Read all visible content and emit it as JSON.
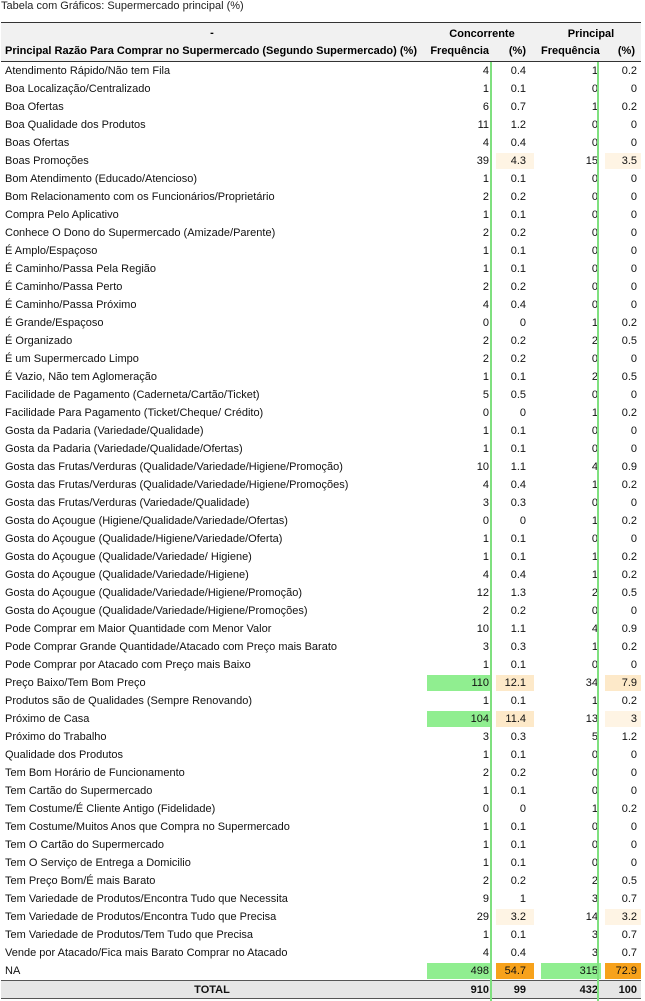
{
  "title": "Tabela com Gráficos: Supermercado principal (%)",
  "header": {
    "dash": "-",
    "row_label": "Principal Razão Para Comprar no Supermercado (Segundo Supermercado) (%)",
    "group1": "Concorrente",
    "group2": "Principal",
    "freq_label": "Frequência",
    "pct_label": "(%)"
  },
  "colors": {
    "bar_green": "#7fe07f",
    "fill_green": "#90ee90",
    "fill_orange": "#f7a21b",
    "fill_peach": "#fde9c9",
    "fill_light_peach": "#fef4e4"
  },
  "rows": [
    {
      "label": "Atendimento Rápido/Não tem Fila",
      "f1": "4",
      "p1": "0.4",
      "f2": "1",
      "p2": "0.2"
    },
    {
      "label": "Boa Localização/Centralizado",
      "f1": "1",
      "p1": "0.1",
      "f2": "0",
      "p2": "0"
    },
    {
      "label": "Boa Ofertas",
      "f1": "6",
      "p1": "0.7",
      "f2": "1",
      "p2": "0.2"
    },
    {
      "label": "Boa Qualidade dos Produtos",
      "f1": "11",
      "p1": "1.2",
      "f2": "0",
      "p2": "0"
    },
    {
      "label": "Boas Ofertas",
      "f1": "4",
      "p1": "0.4",
      "f2": "0",
      "p2": "0"
    },
    {
      "label": "Boas Promoções",
      "f1": "39",
      "p1": "4.3",
      "f2": "15",
      "p2": "3.5"
    },
    {
      "label": "Bom Atendimento (Educado/Atencioso)",
      "f1": "1",
      "p1": "0.1",
      "f2": "0",
      "p2": "0"
    },
    {
      "label": "Bom Relacionamento com os Funcionários/Proprietário",
      "f1": "2",
      "p1": "0.2",
      "f2": "0",
      "p2": "0"
    },
    {
      "label": "Compra Pelo Aplicativo",
      "f1": "1",
      "p1": "0.1",
      "f2": "0",
      "p2": "0"
    },
    {
      "label": "Conhece O Dono do Supermercado (Amizade/Parente)",
      "f1": "2",
      "p1": "0.2",
      "f2": "0",
      "p2": "0"
    },
    {
      "label": "É Amplo/Espaçoso",
      "f1": "1",
      "p1": "0.1",
      "f2": "0",
      "p2": "0"
    },
    {
      "label": "É Caminho/Passa Pela Região",
      "f1": "1",
      "p1": "0.1",
      "f2": "0",
      "p2": "0"
    },
    {
      "label": "É Caminho/Passa Perto",
      "f1": "2",
      "p1": "0.2",
      "f2": "0",
      "p2": "0"
    },
    {
      "label": "É Caminho/Passa Próximo",
      "f1": "4",
      "p1": "0.4",
      "f2": "0",
      "p2": "0"
    },
    {
      "label": "É Grande/Espaçoso",
      "f1": "0",
      "p1": "0",
      "f2": "1",
      "p2": "0.2"
    },
    {
      "label": "É Organizado",
      "f1": "2",
      "p1": "0.2",
      "f2": "2",
      "p2": "0.5"
    },
    {
      "label": "É um Supermercado Limpo",
      "f1": "2",
      "p1": "0.2",
      "f2": "0",
      "p2": "0"
    },
    {
      "label": "É Vazio, Não tem Aglomeração",
      "f1": "1",
      "p1": "0.1",
      "f2": "2",
      "p2": "0.5"
    },
    {
      "label": "Facilidade de Pagamento (Caderneta/Cartão/Ticket)",
      "f1": "5",
      "p1": "0.5",
      "f2": "0",
      "p2": "0"
    },
    {
      "label": "Facilidade Para Pagamento (Ticket/Cheque/ Crédito)",
      "f1": "0",
      "p1": "0",
      "f2": "1",
      "p2": "0.2"
    },
    {
      "label": "Gosta da Padaria (Variedade/Qualidade)",
      "f1": "1",
      "p1": "0.1",
      "f2": "0",
      "p2": "0"
    },
    {
      "label": "Gosta da Padaria (Variedade/Qualidade/Ofertas)",
      "f1": "1",
      "p1": "0.1",
      "f2": "0",
      "p2": "0"
    },
    {
      "label": "Gosta das Frutas/Verduras (Qualidade/Variedade/Higiene/Promoção)",
      "f1": "10",
      "p1": "1.1",
      "f2": "4",
      "p2": "0.9"
    },
    {
      "label": "Gosta das Frutas/Verduras (Qualidade/Variedade/Higiene/Promoções)",
      "f1": "4",
      "p1": "0.4",
      "f2": "1",
      "p2": "0.2"
    },
    {
      "label": "Gosta das Frutas/Verduras (Variedade/Qualidade)",
      "f1": "3",
      "p1": "0.3",
      "f2": "0",
      "p2": "0"
    },
    {
      "label": "Gosta do Açougue (Higiene/Qualidade/Variedade/Ofertas)",
      "f1": "0",
      "p1": "0",
      "f2": "1",
      "p2": "0.2"
    },
    {
      "label": "Gosta do Açougue (Qualidade/Higiene/Variedade/Oferta)",
      "f1": "1",
      "p1": "0.1",
      "f2": "0",
      "p2": "0"
    },
    {
      "label": "Gosta do Açougue (Qualidade/Variedade/ Higiene)",
      "f1": "1",
      "p1": "0.1",
      "f2": "1",
      "p2": "0.2"
    },
    {
      "label": "Gosta do Açougue (Qualidade/Variedade/Higiene)",
      "f1": "4",
      "p1": "0.4",
      "f2": "1",
      "p2": "0.2"
    },
    {
      "label": "Gosta do Açougue (Qualidade/Variedade/Higiene/Promoção)",
      "f1": "12",
      "p1": "1.3",
      "f2": "2",
      "p2": "0.5"
    },
    {
      "label": "Gosta do Açougue (Qualidade/Variedade/Higiene/Promoções)",
      "f1": "2",
      "p1": "0.2",
      "f2": "0",
      "p2": "0"
    },
    {
      "label": "Pode Comprar em Maior Quantidade com Menor Valor",
      "f1": "10",
      "p1": "1.1",
      "f2": "4",
      "p2": "0.9"
    },
    {
      "label": "Pode Comprar Grande Quantidade/Atacado com Preço mais Barato",
      "f1": "3",
      "p1": "0.3",
      "f2": "1",
      "p2": "0.2"
    },
    {
      "label": "Pode Comprar por Atacado com Preço mais Baixo",
      "f1": "1",
      "p1": "0.1",
      "f2": "0",
      "p2": "0"
    },
    {
      "label": "Preço Baixo/Tem Bom Preço",
      "f1": "110",
      "p1": "12.1",
      "f2": "34",
      "p2": "7.9"
    },
    {
      "label": "Produtos são de Qualidades (Sempre Renovando)",
      "f1": "1",
      "p1": "0.1",
      "f2": "1",
      "p2": "0.2"
    },
    {
      "label": "Próximo de Casa",
      "f1": "104",
      "p1": "11.4",
      "f2": "13",
      "p2": "3"
    },
    {
      "label": "Próximo do Trabalho",
      "f1": "3",
      "p1": "0.3",
      "f2": "5",
      "p2": "1.2"
    },
    {
      "label": "Qualidade dos Produtos",
      "f1": "1",
      "p1": "0.1",
      "f2": "0",
      "p2": "0"
    },
    {
      "label": "Tem Bom Horário de Funcionamento",
      "f1": "2",
      "p1": "0.2",
      "f2": "0",
      "p2": "0"
    },
    {
      "label": "Tem Cartão do Supermercado",
      "f1": "1",
      "p1": "0.1",
      "f2": "0",
      "p2": "0"
    },
    {
      "label": "Tem Costume/É Cliente Antigo (Fidelidade)",
      "f1": "0",
      "p1": "0",
      "f2": "1",
      "p2": "0.2"
    },
    {
      "label": "Tem Costume/Muitos Anos que Compra no Supermercado",
      "f1": "1",
      "p1": "0.1",
      "f2": "0",
      "p2": "0"
    },
    {
      "label": "Tem O Cartão do Supermercado",
      "f1": "1",
      "p1": "0.1",
      "f2": "0",
      "p2": "0"
    },
    {
      "label": "Tem O Serviço de Entrega a Domicilio",
      "f1": "1",
      "p1": "0.1",
      "f2": "0",
      "p2": "0"
    },
    {
      "label": "Tem Preço Bom/É mais Barato",
      "f1": "2",
      "p1": "0.2",
      "f2": "2",
      "p2": "0.5"
    },
    {
      "label": "Tem Variedade de Produtos/Encontra Tudo que Necessita",
      "f1": "9",
      "p1": "1",
      "f2": "3",
      "p2": "0.7"
    },
    {
      "label": "Tem Variedade de Produtos/Encontra Tudo que Precisa",
      "f1": "29",
      "p1": "3.2",
      "f2": "14",
      "p2": "3.2"
    },
    {
      "label": "Tem Variedade de Produtos/Tem Tudo que Precisa",
      "f1": "1",
      "p1": "0.1",
      "f2": "3",
      "p2": "0.7"
    },
    {
      "label": "Vende por Atacado/Fica mais Barato Comprar no Atacado",
      "f1": "4",
      "p1": "0.4",
      "f2": "3",
      "p2": "0.7"
    },
    {
      "label": "NA",
      "f1": "498",
      "p1": "54.7",
      "f2": "315",
      "p2": "72.9"
    }
  ],
  "total": {
    "label": "TOTAL",
    "f1": "910",
    "p1": "99",
    "f2": "432",
    "p2": "100"
  }
}
